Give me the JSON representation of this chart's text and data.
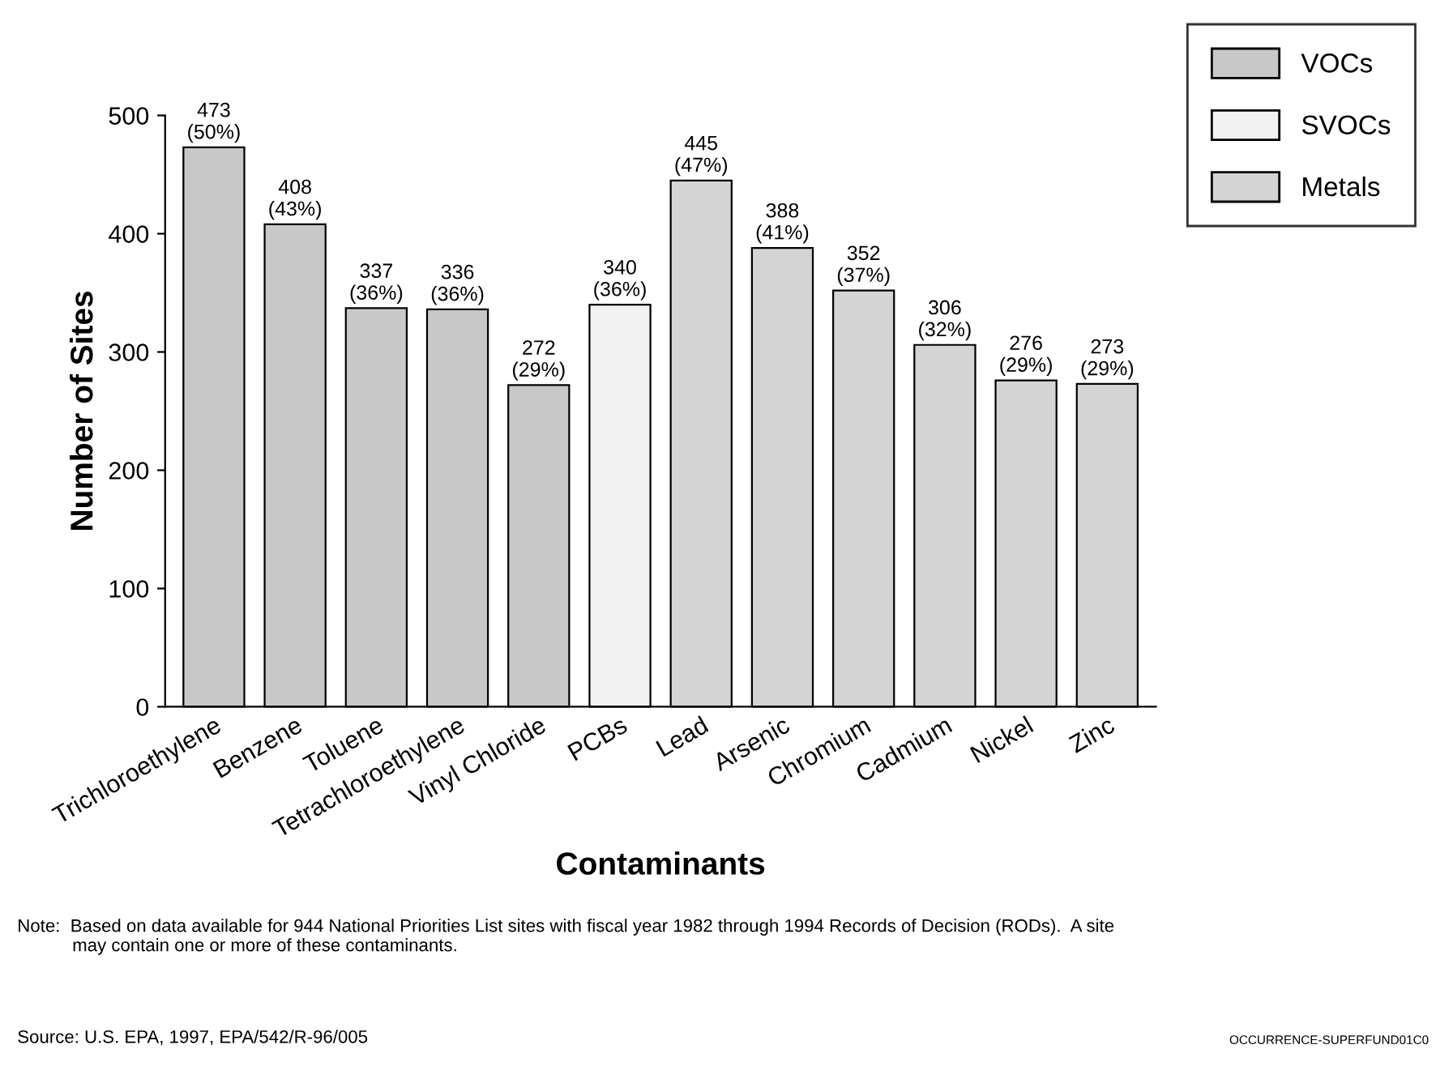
{
  "chart_data": {
    "type": "bar",
    "categories": [
      "Trichloroethylene",
      "Benzene",
      "Toluene",
      "Tetrachloroethylene",
      "Vinyl Chloride",
      "PCBs",
      "Lead",
      "Arsenic",
      "Chromium",
      "Cadmium",
      "Nickel",
      "Zinc"
    ],
    "series": [
      {
        "name": "VOCs",
        "color": "#c8c8c8",
        "values": [
          473,
          408,
          337,
          336,
          272,
          null,
          null,
          null,
          null,
          null,
          null,
          null
        ],
        "value_labels": [
          "473\n(50%)",
          "408\n(43%)",
          "337\n(36%)",
          "336\n(36%)",
          "272\n(29%)",
          null,
          null,
          null,
          null,
          null,
          null,
          null
        ]
      },
      {
        "name": "SVOCs",
        "color": "#f2f2f2",
        "values": [
          null,
          null,
          null,
          null,
          null,
          340,
          null,
          null,
          null,
          null,
          null,
          null
        ],
        "value_labels": [
          null,
          null,
          null,
          null,
          null,
          "340\n(36%)",
          null,
          null,
          null,
          null,
          null,
          null
        ]
      },
      {
        "name": "Metals",
        "color": "#d4d4d4",
        "values": [
          null,
          null,
          null,
          null,
          null,
          null,
          445,
          388,
          352,
          306,
          276,
          273
        ],
        "value_labels": [
          null,
          null,
          null,
          null,
          null,
          null,
          "445\n(47%)",
          "388\n(41%)",
          "352\n(37%)",
          "306\n(32%)",
          "276\n(29%)",
          "273\n(29%)"
        ]
      }
    ],
    "xlabel": "Contaminants",
    "ylabel": "Number of Sites",
    "ylim": [
      0,
      500
    ],
    "yticks": [
      0,
      100,
      200,
      300,
      400,
      500
    ],
    "grid": false,
    "legend": "top right",
    "annotations": [
      "Note:  Based on data available for 944 National Priorities List sites with fiscal year 1982 through 1994 Records of Decision (RODs).  A site\n           may contain one or more of these contaminants.",
      "Source: U.S. EPA, 1997, EPA/542/R-96/005",
      "OCCURRENCE-SUPERFUND01C0"
    ]
  }
}
